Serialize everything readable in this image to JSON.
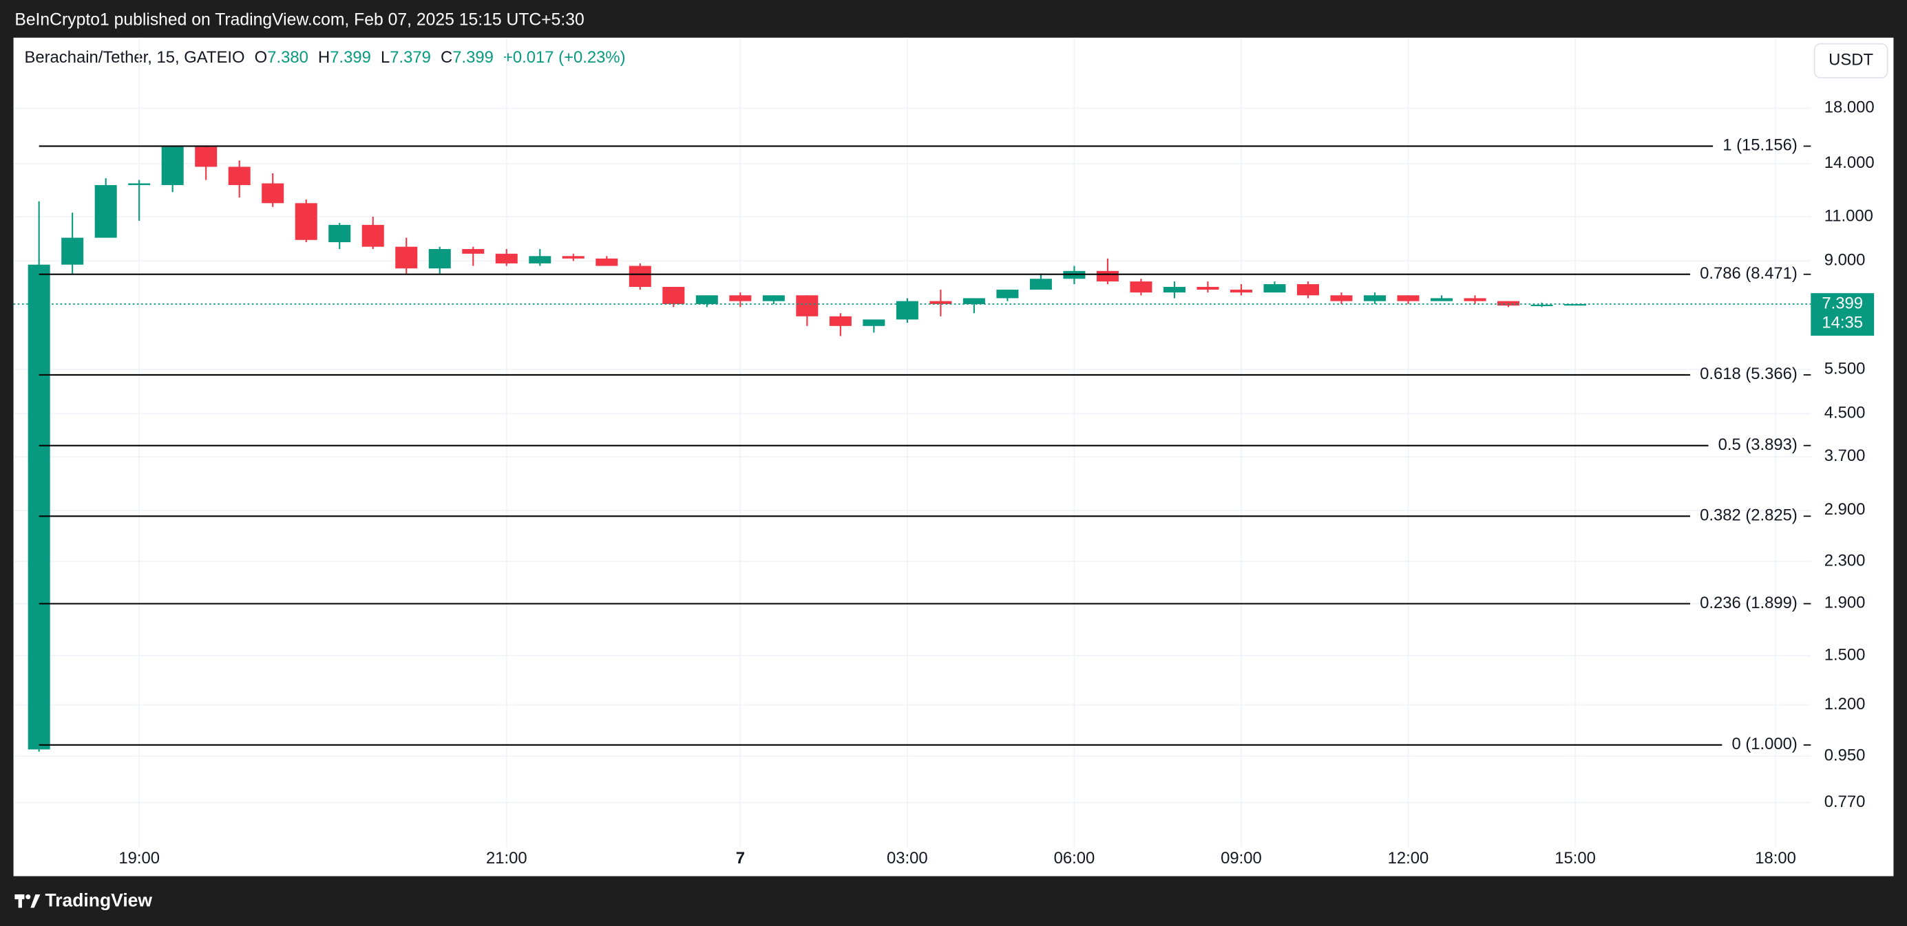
{
  "header": {
    "publisher": "BeInCrypto1 published on TradingView.com, Feb 07, 2025 15:15 UTC+5:30",
    "symbol": "Berachain/Tether, 15, GATEIO",
    "ohlc": [
      {
        "key": "O",
        "value": "7.380"
      },
      {
        "key": "H",
        "value": "7.399"
      },
      {
        "key": "L",
        "value": "7.379"
      },
      {
        "key": "C",
        "value": "7.399"
      }
    ],
    "change": "+0.017 (+0.23%)",
    "currency": "USDT"
  },
  "footer": {
    "brand": "TradingView"
  },
  "chart_data": {
    "type": "candlestick",
    "log_scale": true,
    "grid": true,
    "up_color": "#089981",
    "down_color": "#f23645",
    "categories": [
      null,
      null,
      null,
      "19:00",
      null,
      null,
      null,
      null,
      null,
      null,
      null,
      null,
      null,
      null,
      "21:00",
      null,
      null,
      null,
      null,
      null,
      null,
      "7",
      null,
      null,
      null,
      null,
      "03:00",
      null,
      null,
      null,
      null,
      "06:00",
      null,
      null,
      null,
      null,
      "09:00",
      null,
      null,
      null,
      null,
      "12:00",
      null,
      null,
      null,
      null,
      "15:00",
      null,
      null,
      null,
      null,
      null,
      "18:00"
    ],
    "open": [
      0.98,
      8.85,
      10.0,
      12.7,
      12.7,
      15.1,
      13.8,
      12.8,
      11.7,
      9.8,
      10.6,
      9.6,
      8.7,
      9.5,
      9.3,
      8.9,
      9.2,
      9.1,
      8.8,
      8.0,
      7.4,
      7.7,
      7.5,
      7.7,
      7.0,
      6.7,
      6.9,
      7.5,
      7.4,
      7.6,
      7.9,
      8.3,
      8.6,
      8.2,
      7.8,
      8.0,
      7.9,
      7.8,
      8.1,
      7.7,
      7.5,
      7.7,
      7.5,
      7.6,
      7.5,
      7.35,
      7.38,
      null,
      null,
      null,
      null,
      null,
      null
    ],
    "high": [
      11.8,
      11.2,
      13.1,
      13.0,
      15.2,
      15.2,
      14.2,
      13.4,
      11.9,
      10.7,
      11.0,
      10.0,
      9.6,
      9.6,
      9.5,
      9.5,
      9.3,
      9.2,
      8.9,
      8.0,
      7.7,
      7.8,
      7.7,
      7.7,
      7.1,
      6.9,
      7.6,
      7.9,
      7.6,
      7.9,
      8.5,
      8.8,
      9.1,
      8.3,
      8.2,
      8.2,
      8.1,
      8.2,
      8.2,
      7.8,
      7.8,
      7.7,
      7.7,
      7.7,
      7.5,
      7.45,
      7.399,
      null,
      null,
      null,
      null,
      null,
      null
    ],
    "low": [
      0.97,
      8.5,
      10.0,
      10.8,
      12.3,
      13.0,
      12.0,
      11.5,
      9.8,
      9.5,
      9.5,
      8.5,
      8.5,
      8.8,
      8.8,
      8.8,
      9.0,
      8.9,
      7.9,
      7.3,
      7.3,
      7.3,
      7.4,
      6.7,
      6.4,
      6.5,
      6.8,
      7.0,
      7.1,
      7.5,
      7.9,
      8.1,
      8.1,
      7.7,
      7.6,
      7.8,
      7.7,
      7.8,
      7.6,
      7.4,
      7.4,
      7.4,
      7.5,
      7.4,
      7.3,
      7.3,
      7.379,
      null,
      null,
      null,
      null,
      null,
      null
    ],
    "close": [
      8.85,
      10.0,
      12.7,
      12.8,
      15.1,
      13.8,
      12.7,
      11.7,
      9.9,
      10.6,
      9.6,
      8.7,
      9.5,
      9.3,
      8.9,
      9.2,
      9.1,
      8.8,
      8.0,
      7.4,
      7.7,
      7.5,
      7.7,
      7.0,
      6.7,
      6.9,
      7.5,
      7.4,
      7.6,
      7.9,
      8.3,
      8.6,
      8.2,
      7.8,
      8.0,
      7.9,
      7.8,
      8.1,
      7.7,
      7.5,
      7.7,
      7.5,
      7.6,
      7.5,
      7.35,
      7.38,
      7.399,
      null,
      null,
      null,
      null,
      null,
      null
    ],
    "ylim": [
      0.654,
      24.8
    ],
    "yticks": [
      {
        "value": 18,
        "label": "18.000"
      },
      {
        "value": 14,
        "label": "14.000"
      },
      {
        "value": 11,
        "label": "11.000"
      },
      {
        "value": 9,
        "label": "9.000"
      },
      {
        "value": 5.5,
        "label": "5.500"
      },
      {
        "value": 4.5,
        "label": "4.500"
      },
      {
        "value": 3.7,
        "label": "3.700"
      },
      {
        "value": 2.9,
        "label": "2.900"
      },
      {
        "value": 2.3,
        "label": "2.300"
      },
      {
        "value": 1.9,
        "label": "1.900"
      },
      {
        "value": 1.5,
        "label": "1.500"
      },
      {
        "value": 1.2,
        "label": "1.200"
      },
      {
        "value": 0.95,
        "label": "0.950"
      },
      {
        "value": 0.77,
        "label": "0.770"
      }
    ],
    "levels": [
      {
        "value": 15.156,
        "label": "1 (15.156)"
      },
      {
        "value": 8.471,
        "label": "0.786 (8.471)"
      },
      {
        "value": 5.366,
        "label": "0.618 (5.366)"
      },
      {
        "value": 3.893,
        "label": "0.5 (3.893)"
      },
      {
        "value": 2.825,
        "label": "0.382 (2.825)"
      },
      {
        "value": 1.899,
        "label": "0.236 (1.899)"
      },
      {
        "value": 1.0,
        "label": "0 (1.000)"
      }
    ],
    "level_color": "#000000",
    "last_price": 7.399,
    "countdown": "14:35"
  }
}
